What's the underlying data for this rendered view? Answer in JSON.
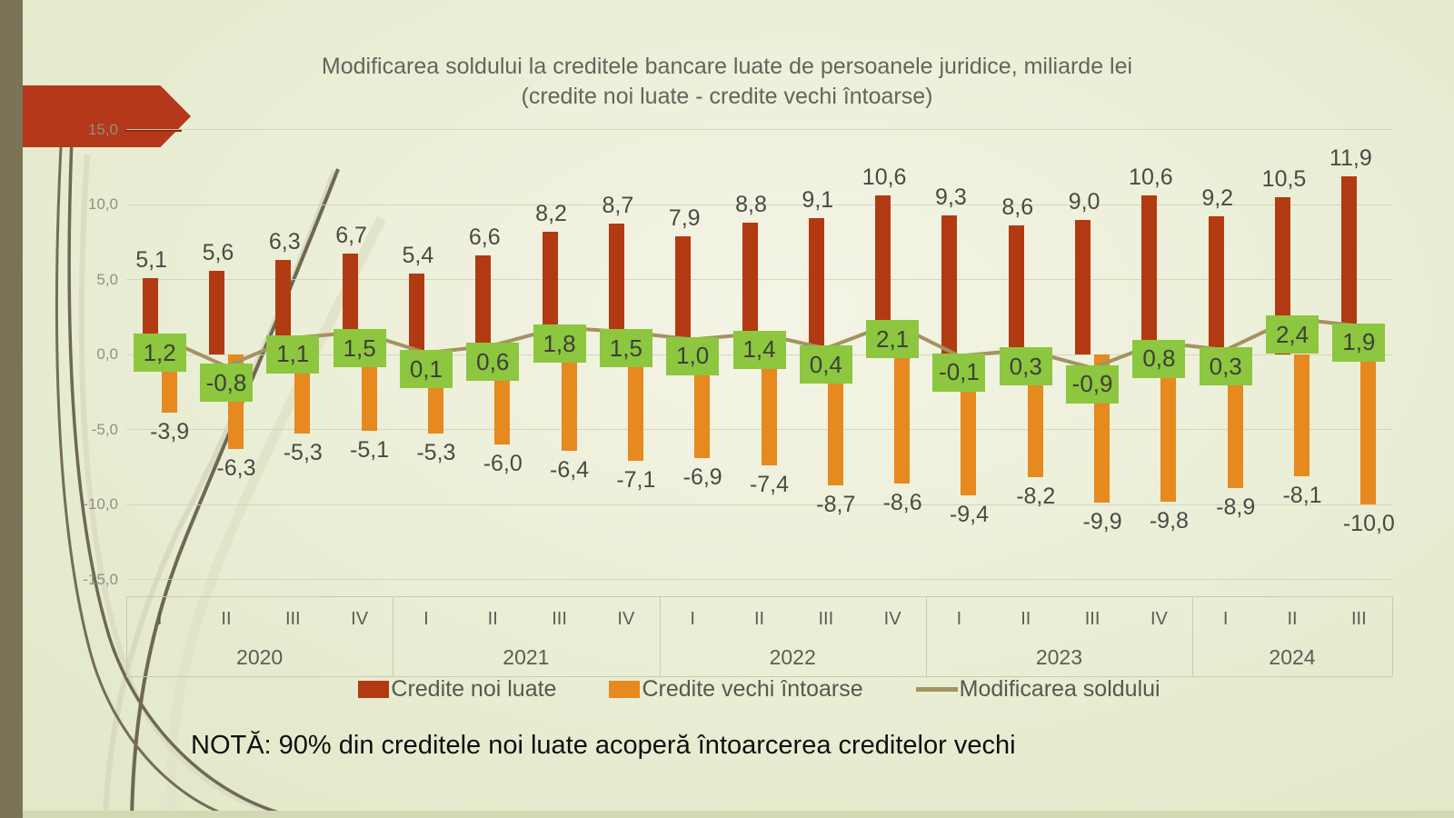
{
  "slide": {
    "title_line1": "Modificarea soldului la creditele bancare luate de persoanele juridice, miliarde lei",
    "title_line2": "(credite noi luate - credite vechi întoarse)",
    "note": "NOTĂ: 90% din creditele noi  luate acoperă întoarcerea creditelor vechi"
  },
  "colors": {
    "bar_new": "#b23a12",
    "bar_old": "#e6891f",
    "line": "#a49260",
    "label_bg": "#8dc63f",
    "arrow_banner": "#b5381a",
    "left_stripe": "#7a7356"
  },
  "chart_data": {
    "type": "bar",
    "subtype": "bar+line combo, positive/negative columns with line data labels",
    "title": "Modificarea soldului la creditele bancare luate de persoanele juridice, miliarde lei (credite noi luate - credite vechi întoarse)",
    "xlabel": "",
    "ylabel": "",
    "ylim": [
      -15,
      15
    ],
    "grid": true,
    "legend_position": "bottom",
    "y_axis": {
      "min": -15,
      "max": 15,
      "tick_step": 5,
      "tick_labels": [
        "15,0",
        "10,0",
        "5,0",
        "0,0",
        "-5,0",
        "-10,0",
        "-15,0"
      ]
    },
    "categories": [
      "I",
      "II",
      "III",
      "IV",
      "I",
      "II",
      "III",
      "IV",
      "I",
      "II",
      "III",
      "IV",
      "I",
      "II",
      "III",
      "IV",
      "I",
      "II",
      "III"
    ],
    "year_groups": [
      {
        "year": "2020",
        "start": 0,
        "count": 4
      },
      {
        "year": "2021",
        "start": 4,
        "count": 4
      },
      {
        "year": "2022",
        "start": 8,
        "count": 4
      },
      {
        "year": "2023",
        "start": 12,
        "count": 4
      },
      {
        "year": "2024",
        "start": 16,
        "count": 3
      }
    ],
    "series": [
      {
        "name": "Credite noi luate",
        "type": "bar",
        "color": "#b23a12",
        "values": [
          5.1,
          5.6,
          6.3,
          6.7,
          5.4,
          6.6,
          8.2,
          8.7,
          7.9,
          8.8,
          9.1,
          10.6,
          9.3,
          8.6,
          9.0,
          10.6,
          9.2,
          10.5,
          11.9
        ],
        "labels": [
          "5,1",
          "5,6",
          "6,3",
          "6,7",
          "5,4",
          "6,6",
          "8,2",
          "8,7",
          "7,9",
          "8,8",
          "9,1",
          "10,6",
          "9,3",
          "8,6",
          "9,0",
          "10,6",
          "9,2",
          "10,5",
          "11,9"
        ]
      },
      {
        "name": "Credite vechi întoarse",
        "type": "bar",
        "color": "#e6891f",
        "values": [
          -3.9,
          -6.3,
          -5.3,
          -5.1,
          -5.3,
          -6.0,
          -6.4,
          -7.1,
          -6.9,
          -7.4,
          -8.7,
          -8.6,
          -9.4,
          -8.2,
          -9.9,
          -9.8,
          -8.9,
          -8.1,
          -10.0
        ],
        "labels": [
          "-3,9",
          "-6,3",
          "-5,3",
          "-5,1",
          "-5,3",
          "-6,0",
          "-6,4",
          "-7,1",
          "-6,9",
          "-7,4",
          "-8,7",
          "-8,6",
          "-9,4",
          "-8,2",
          "-9,9",
          "-9,8",
          "-8,9",
          "-8,1",
          "-10,0"
        ]
      },
      {
        "name": "Modificarea soldului",
        "type": "line",
        "color": "#a49260",
        "label_bg": "#8dc63f",
        "values": [
          1.2,
          -0.8,
          1.1,
          1.5,
          0.1,
          0.6,
          1.8,
          1.5,
          1.0,
          1.4,
          0.4,
          2.1,
          -0.1,
          0.3,
          -0.9,
          0.8,
          0.3,
          2.4,
          1.9
        ],
        "labels": [
          "1,2",
          "-0,8",
          "1,1",
          "1,5",
          "0,1",
          "0,6",
          "1,8",
          "1,5",
          "1,0",
          "1,4",
          "0,4",
          "2,1",
          "-0,1",
          "0,3",
          "-0,9",
          "0,8",
          "0,3",
          "2,4",
          "1,9"
        ]
      }
    ]
  }
}
